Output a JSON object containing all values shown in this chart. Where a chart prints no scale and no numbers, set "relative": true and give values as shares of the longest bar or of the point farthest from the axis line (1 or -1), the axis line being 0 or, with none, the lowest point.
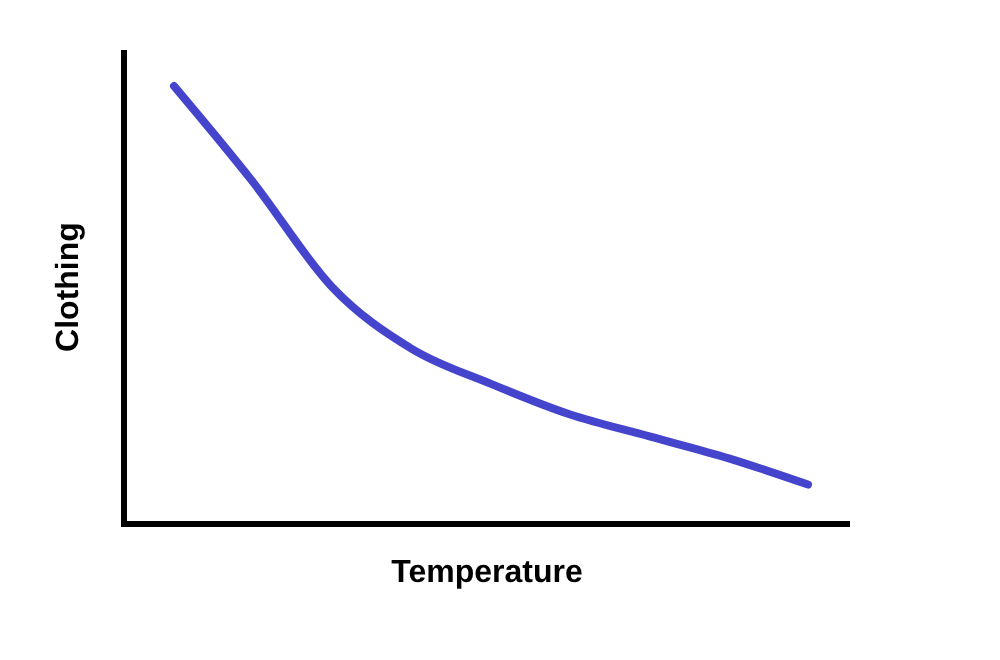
{
  "chart_data": {
    "type": "line",
    "relative": true,
    "xlabel": "Temperature",
    "ylabel": "Clothing",
    "categories": [
      null,
      null,
      null,
      null,
      null,
      null,
      null,
      null,
      null
    ],
    "series": [
      {
        "color": "#4444cc",
        "values": [
          1,
          0.78,
          0.54,
          0.4,
          0.32,
          0.25,
          0.2,
          0.15,
          0.09
        ]
      }
    ]
  }
}
